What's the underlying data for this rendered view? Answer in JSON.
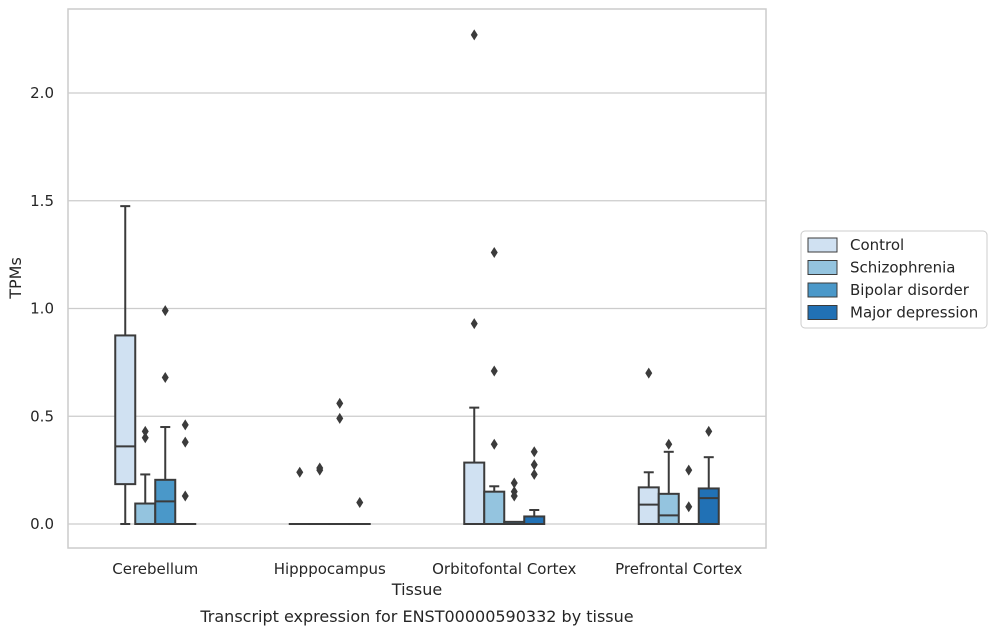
{
  "chart_data": {
    "type": "box",
    "xlabel": "Tissue",
    "ylabel": "TPMs",
    "caption": "Transcript expression for ENST00000590332 by tissue",
    "categories": [
      "Cerebellum",
      "Hipppocampus",
      "Orbitofontal Cortex",
      "Prefrontal Cortex"
    ],
    "ylim": [
      -0.11,
      2.38
    ],
    "yticks": [
      0.0,
      0.5,
      1.0,
      1.5,
      2.0
    ],
    "ytick_labels": [
      "0.0",
      "0.5",
      "1.0",
      "1.5",
      "2.0"
    ],
    "grid": "horizontal",
    "legend_position": "right",
    "series": [
      {
        "name": "Control",
        "color": "#d0e1f2",
        "boxes": [
          {
            "q1": 0.185,
            "median": 0.36,
            "q3": 0.875,
            "whisker_low": 0.0,
            "whisker_high": 1.475,
            "outliers": []
          },
          {
            "q1": 0.0,
            "median": 0.0,
            "q3": 0.0,
            "whisker_low": 0.0,
            "whisker_high": 0.0,
            "outliers": [
              0.24
            ]
          },
          {
            "q1": 0.0,
            "median": 0.0,
            "q3": 0.285,
            "whisker_low": 0.0,
            "whisker_high": 0.54,
            "outliers": [
              0.93,
              2.27
            ]
          },
          {
            "q1": 0.0,
            "median": 0.09,
            "q3": 0.17,
            "whisker_low": 0.0,
            "whisker_high": 0.24,
            "outliers": [
              0.7
            ]
          }
        ]
      },
      {
        "name": "Schizophrenia",
        "color": "#94c4df",
        "boxes": [
          {
            "q1": 0.0,
            "median": 0.0,
            "q3": 0.095,
            "whisker_low": 0.0,
            "whisker_high": 0.23,
            "outliers": [
              0.4,
              0.43
            ]
          },
          {
            "q1": 0.0,
            "median": 0.0,
            "q3": 0.0,
            "whisker_low": 0.0,
            "whisker_high": 0.0,
            "outliers": [
              0.25,
              0.26
            ]
          },
          {
            "q1": 0.0,
            "median": 0.0,
            "q3": 0.15,
            "whisker_low": 0.0,
            "whisker_high": 0.175,
            "outliers": [
              0.37,
              0.71,
              1.26
            ]
          },
          {
            "q1": 0.0,
            "median": 0.04,
            "q3": 0.14,
            "whisker_low": 0.0,
            "whisker_high": 0.335,
            "outliers": [
              0.37
            ]
          }
        ]
      },
      {
        "name": "Bipolar disorder",
        "color": "#4a98c9",
        "boxes": [
          {
            "q1": 0.0,
            "median": 0.105,
            "q3": 0.205,
            "whisker_low": 0.0,
            "whisker_high": 0.45,
            "outliers": [
              0.68,
              0.99
            ]
          },
          {
            "q1": 0.0,
            "median": 0.0,
            "q3": 0.0,
            "whisker_low": 0.0,
            "whisker_high": 0.0,
            "outliers": [
              0.49,
              0.56
            ]
          },
          {
            "q1": 0.0,
            "median": 0.0,
            "q3": 0.01,
            "whisker_low": 0.0,
            "whisker_high": 0.01,
            "outliers": [
              0.13,
              0.15,
              0.19
            ]
          },
          {
            "q1": 0.0,
            "median": 0.0,
            "q3": 0.0,
            "whisker_low": 0.0,
            "whisker_high": 0.0,
            "outliers": [
              0.08,
              0.25
            ]
          }
        ]
      },
      {
        "name": "Major depression",
        "color": "#2171b5",
        "boxes": [
          {
            "q1": 0.0,
            "median": 0.0,
            "q3": 0.0,
            "whisker_low": 0.0,
            "whisker_high": 0.0,
            "outliers": [
              0.13,
              0.38,
              0.46
            ]
          },
          {
            "q1": 0.0,
            "median": 0.0,
            "q3": 0.0,
            "whisker_low": 0.0,
            "whisker_high": 0.0,
            "outliers": [
              0.1
            ]
          },
          {
            "q1": 0.0,
            "median": 0.0,
            "q3": 0.035,
            "whisker_low": 0.0,
            "whisker_high": 0.065,
            "outliers": [
              0.23,
              0.275,
              0.335
            ]
          },
          {
            "q1": 0.0,
            "median": 0.12,
            "q3": 0.165,
            "whisker_low": 0.0,
            "whisker_high": 0.31,
            "outliers": [
              0.43
            ]
          }
        ]
      }
    ]
  }
}
